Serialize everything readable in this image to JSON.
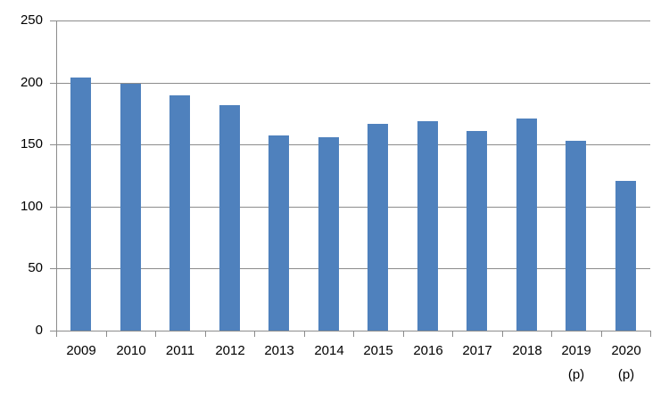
{
  "chart_data": {
    "type": "bar",
    "title": "",
    "xlabel": "",
    "ylabel": "",
    "categories": [
      "2009",
      "2010",
      "2011",
      "2012",
      "2013",
      "2014",
      "2015",
      "2016",
      "2017",
      "2018",
      "2019",
      "2020"
    ],
    "category_suffixes": [
      "",
      "",
      "",
      "",
      "",
      "",
      "",
      "",
      "",
      "",
      "(p)",
      "(p)"
    ],
    "values": [
      204,
      199,
      190,
      182,
      157,
      156,
      167,
      169,
      161,
      171,
      153,
      121
    ],
    "ylim": [
      0,
      250
    ],
    "yticks": [
      0,
      50,
      100,
      150,
      200,
      250
    ],
    "grid": true,
    "legend_position": "none",
    "colors": {
      "bar": "#4F81BD",
      "gridline": "#8C8C8C",
      "axis": "#8C8C8C",
      "text": "#000000",
      "background": "#FFFFFF"
    }
  }
}
